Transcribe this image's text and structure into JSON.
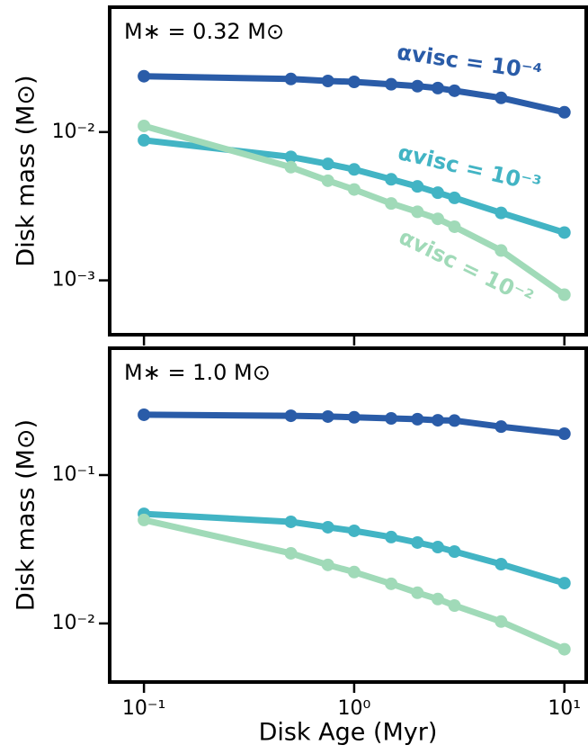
{
  "chart_data": [
    {
      "type": "line",
      "annotation": "M∗ = 0.32 M⊙",
      "y_label": "Disk mass (M⊙)",
      "log_x": true,
      "log_y": true,
      "x": [
        0.1,
        0.5,
        0.75,
        1,
        1.5,
        2,
        2.5,
        3,
        5,
        10
      ],
      "xlim": [
        0.0687,
        12.7
      ],
      "ylim": [
        0.00043,
        0.0695
      ],
      "yticks": [
        {
          "value": 0.001,
          "label": "10⁻³"
        },
        {
          "value": 0.01,
          "label": "10⁻²"
        }
      ],
      "series": [
        {
          "name": "αvisc = 10⁻⁴",
          "color": "#2a5ca8",
          "values": [
            0.0238,
            0.0228,
            0.0221,
            0.0218,
            0.021,
            0.0204,
            0.0198,
            0.019,
            0.017,
            0.0136
          ]
        },
        {
          "name": "αvisc = 10⁻³",
          "color": "#42b4c4",
          "values": [
            0.0088,
            0.0068,
            0.0061,
            0.0056,
            0.0048,
            0.0043,
            0.0039,
            0.0036,
            0.00285,
            0.0021
          ]
        },
        {
          "name": "αvisc = 10⁻²",
          "color": "#a0dab8",
          "values": [
            0.011,
            0.0058,
            0.0047,
            0.0041,
            0.0033,
            0.0029,
            0.0026,
            0.0023,
            0.00159,
            0.0008
          ]
        }
      ]
    },
    {
      "type": "line",
      "annotation": "M∗ = 1.0 M⊙",
      "y_label": "Disk mass (M⊙)",
      "x_label": "Disk Age (Myr)",
      "log_x": true,
      "log_y": true,
      "x": [
        0.1,
        0.5,
        0.75,
        1,
        1.5,
        2,
        2.5,
        3,
        5,
        10
      ],
      "xlim": [
        0.0687,
        12.7
      ],
      "ylim": [
        0.00403,
        0.716
      ],
      "xticks": [
        {
          "value": 0.1,
          "label": "10⁻¹"
        },
        {
          "value": 1,
          "label": "10⁰"
        },
        {
          "value": 10,
          "label": "10¹"
        }
      ],
      "yticks": [
        {
          "value": 0.01,
          "label": "10⁻²"
        },
        {
          "value": 0.1,
          "label": "10⁻¹"
        }
      ],
      "series": [
        {
          "color": "#2a5ca8",
          "values": [
            0.255,
            0.251,
            0.248,
            0.245,
            0.241,
            0.238,
            0.234,
            0.233,
            0.212,
            0.19
          ]
        },
        {
          "color": "#42b4c4",
          "values": [
            0.0548,
            0.0484,
            0.0445,
            0.0421,
            0.0382,
            0.0351,
            0.0327,
            0.0305,
            0.0251,
            0.0187
          ]
        },
        {
          "color": "#a0dab8",
          "values": [
            0.0498,
            0.0297,
            0.0248,
            0.0222,
            0.0185,
            0.0161,
            0.0146,
            0.0132,
            0.0103,
            0.0067
          ]
        }
      ]
    }
  ]
}
